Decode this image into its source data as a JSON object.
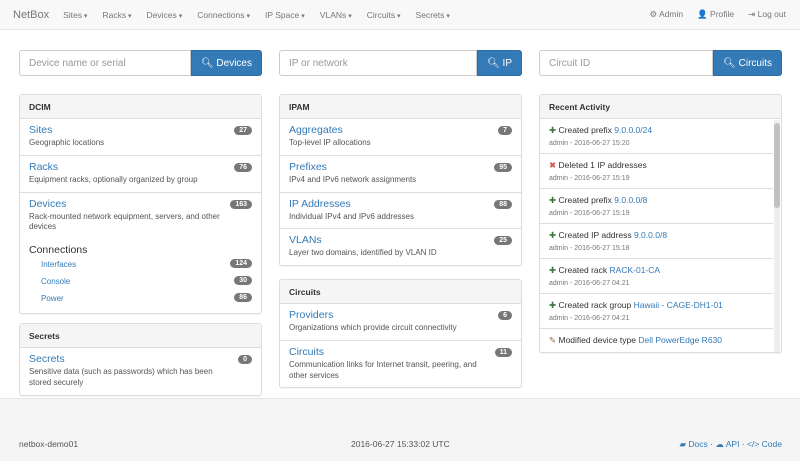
{
  "nav": {
    "brand": "NetBox",
    "menus": [
      "Sites",
      "Racks",
      "Devices",
      "Connections",
      "IP Space",
      "VLANs",
      "Circuits",
      "Secrets"
    ],
    "right": [
      {
        "icon": "gear-icon",
        "glyph": "⚙",
        "label": "Admin"
      },
      {
        "icon": "user-icon",
        "glyph": "👤",
        "label": "Profile"
      },
      {
        "icon": "logout-icon",
        "glyph": "⇥",
        "label": "Log out"
      }
    ]
  },
  "searches": [
    {
      "placeholder": "Device name or serial",
      "button": "Devices"
    },
    {
      "placeholder": "IP or network",
      "button": "IP"
    },
    {
      "placeholder": "Circuit ID",
      "button": "Circuits"
    }
  ],
  "dcim": {
    "title": "DCIM",
    "items": [
      {
        "label": "Sites",
        "desc": "Geographic locations",
        "count": "27"
      },
      {
        "label": "Racks",
        "desc": "Equipment racks, optionally organized by group",
        "count": "76"
      },
      {
        "label": "Devices",
        "desc": "Rack-mounted network equipment, servers, and other devices",
        "count": "163"
      }
    ],
    "connections": {
      "label": "Connections",
      "items": [
        {
          "label": "Interfaces",
          "count": "124"
        },
        {
          "label": "Console",
          "count": "30"
        },
        {
          "label": "Power",
          "count": "86"
        }
      ]
    }
  },
  "secrets": {
    "title": "Secrets",
    "items": [
      {
        "label": "Secrets",
        "desc": "Sensitive data (such as passwords) which has been stored securely",
        "count": "0"
      }
    ]
  },
  "ipam": {
    "title": "IPAM",
    "items": [
      {
        "label": "Aggregates",
        "desc": "Top-level IP allocations",
        "count": "7"
      },
      {
        "label": "Prefixes",
        "desc": "IPv4 and IPv6 network assignments",
        "count": "95"
      },
      {
        "label": "IP Addresses",
        "desc": "Individual IPv4 and IPv6 addresses",
        "count": "88"
      },
      {
        "label": "VLANs",
        "desc": "Layer two domains, identified by VLAN ID",
        "count": "25"
      }
    ]
  },
  "circuits": {
    "title": "Circuits",
    "items": [
      {
        "label": "Providers",
        "desc": "Organizations which provide circuit connectivity",
        "count": "6"
      },
      {
        "label": "Circuits",
        "desc": "Communication links for Internet transit, peering, and other services",
        "count": "11"
      }
    ]
  },
  "activity": {
    "title": "Recent Activity",
    "items": [
      {
        "icon": "plus-icon",
        "glyph": "✚",
        "color": "#3c763d",
        "text": "Created prefix",
        "link": "9.0.0.0/24",
        "meta": "admin - 2016-06-27 15:20"
      },
      {
        "icon": "x-icon",
        "glyph": "✖",
        "color": "#d9534f",
        "text": "Deleted 1 IP addresses",
        "link": "",
        "meta": "admin - 2016-06-27 15:19"
      },
      {
        "icon": "plus-icon",
        "glyph": "✚",
        "color": "#3c763d",
        "text": "Created prefix",
        "link": "9.0.0.0/8",
        "meta": "admin - 2016-06-27 15:19"
      },
      {
        "icon": "plus-icon",
        "glyph": "✚",
        "color": "#3c763d",
        "text": "Created IP address",
        "link": "9.0.0.0/8",
        "meta": "admin - 2016-06-27 15:18"
      },
      {
        "icon": "plus-icon",
        "glyph": "✚",
        "color": "#3c763d",
        "text": "Created rack",
        "link": "RACK-01-CA",
        "meta": "admin - 2016-06-27 04:21"
      },
      {
        "icon": "plus-icon",
        "glyph": "✚",
        "color": "#3c763d",
        "text": "Created rack group",
        "link": "Hawaii - CAGE-DH1-01",
        "meta": "admin - 2016-06-27 04:21"
      },
      {
        "icon": "pencil-icon",
        "glyph": "✎",
        "color": "#8a6d3b",
        "text": "Modified device type",
        "link": "Dell PowerEdge R630",
        "meta": ""
      }
    ]
  },
  "footer": {
    "host": "netbox-demo01",
    "time": "2016-06-27 15:33:02 UTC",
    "links": [
      "Docs",
      "API",
      "Code"
    ]
  }
}
